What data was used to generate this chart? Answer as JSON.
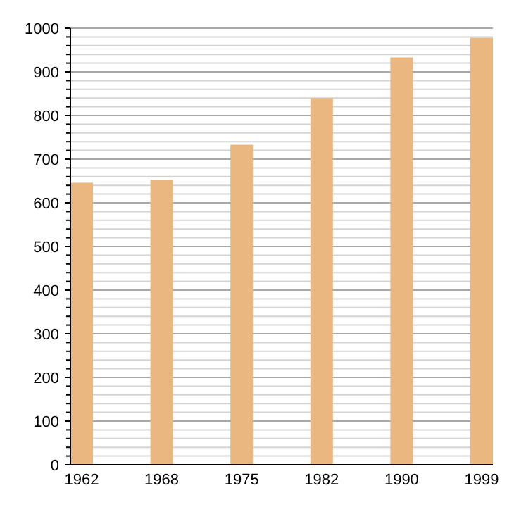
{
  "chart_data": {
    "type": "bar",
    "categories": [
      "1962",
      "1968",
      "1975",
      "1982",
      "1990",
      "1999"
    ],
    "values": [
      646,
      653,
      733,
      840,
      933,
      978
    ],
    "color": "#e9b77f",
    "ylim": [
      0,
      1000
    ],
    "yticks": [
      0,
      {
        "value": 20,
        "label": null
      },
      {
        "value": 40,
        "label": null
      },
      {
        "value": 60,
        "label": null
      },
      {
        "value": 80,
        "label": null
      },
      100,
      {
        "value": 120,
        "label": null
      },
      {
        "value": 140,
        "label": null
      },
      {
        "value": 160,
        "label": null
      },
      {
        "value": 180,
        "label": null
      },
      200,
      {
        "value": 220,
        "label": null
      },
      {
        "value": 240,
        "label": null
      },
      {
        "value": 260,
        "label": null
      },
      {
        "value": 280,
        "label": null
      },
      300,
      {
        "value": 320,
        "label": null
      },
      {
        "value": 340,
        "label": null
      },
      {
        "value": 360,
        "label": null
      },
      {
        "value": 380,
        "label": null
      },
      400,
      {
        "value": 420,
        "label": null
      },
      {
        "value": 440,
        "label": null
      },
      {
        "value": 460,
        "label": null
      },
      {
        "value": 480,
        "label": null
      },
      500,
      {
        "value": 520,
        "label": null
      },
      {
        "value": 540,
        "label": null
      },
      {
        "value": 560,
        "label": null
      },
      {
        "value": 580,
        "label": null
      },
      600,
      {
        "value": 620,
        "label": null
      },
      {
        "value": 640,
        "label": null
      },
      {
        "value": 660,
        "label": null
      },
      {
        "value": 680,
        "label": null
      },
      700,
      {
        "value": 720,
        "label": null
      },
      {
        "value": 740,
        "label": null
      },
      {
        "value": 760,
        "label": null
      },
      {
        "value": 780,
        "label": null
      },
      800,
      {
        "value": 820,
        "label": null
      },
      {
        "value": 840,
        "label": null
      },
      {
        "value": 860,
        "label": null
      },
      {
        "value": 880,
        "label": null
      },
      900,
      {
        "value": 920,
        "label": null
      },
      {
        "value": 940,
        "label": null
      },
      {
        "value": 960,
        "label": null
      },
      {
        "value": 980,
        "label": null
      },
      1000
    ],
    "grid": true
  }
}
